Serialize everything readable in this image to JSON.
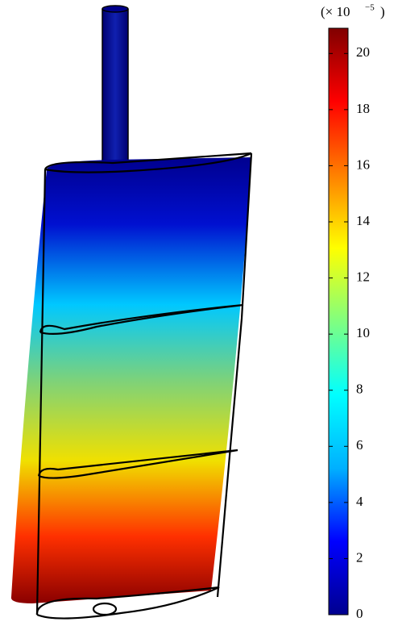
{
  "chart_data": {
    "type": "colorbar",
    "scale_base": "(× 10",
    "scale_exponent": "−5",
    "scale_close": ")",
    "colormap": "rainbow",
    "ylim": [
      0,
      20.9
    ],
    "yticks": [
      0,
      2,
      4,
      6,
      8,
      10,
      12,
      14,
      16,
      18,
      20
    ]
  }
}
